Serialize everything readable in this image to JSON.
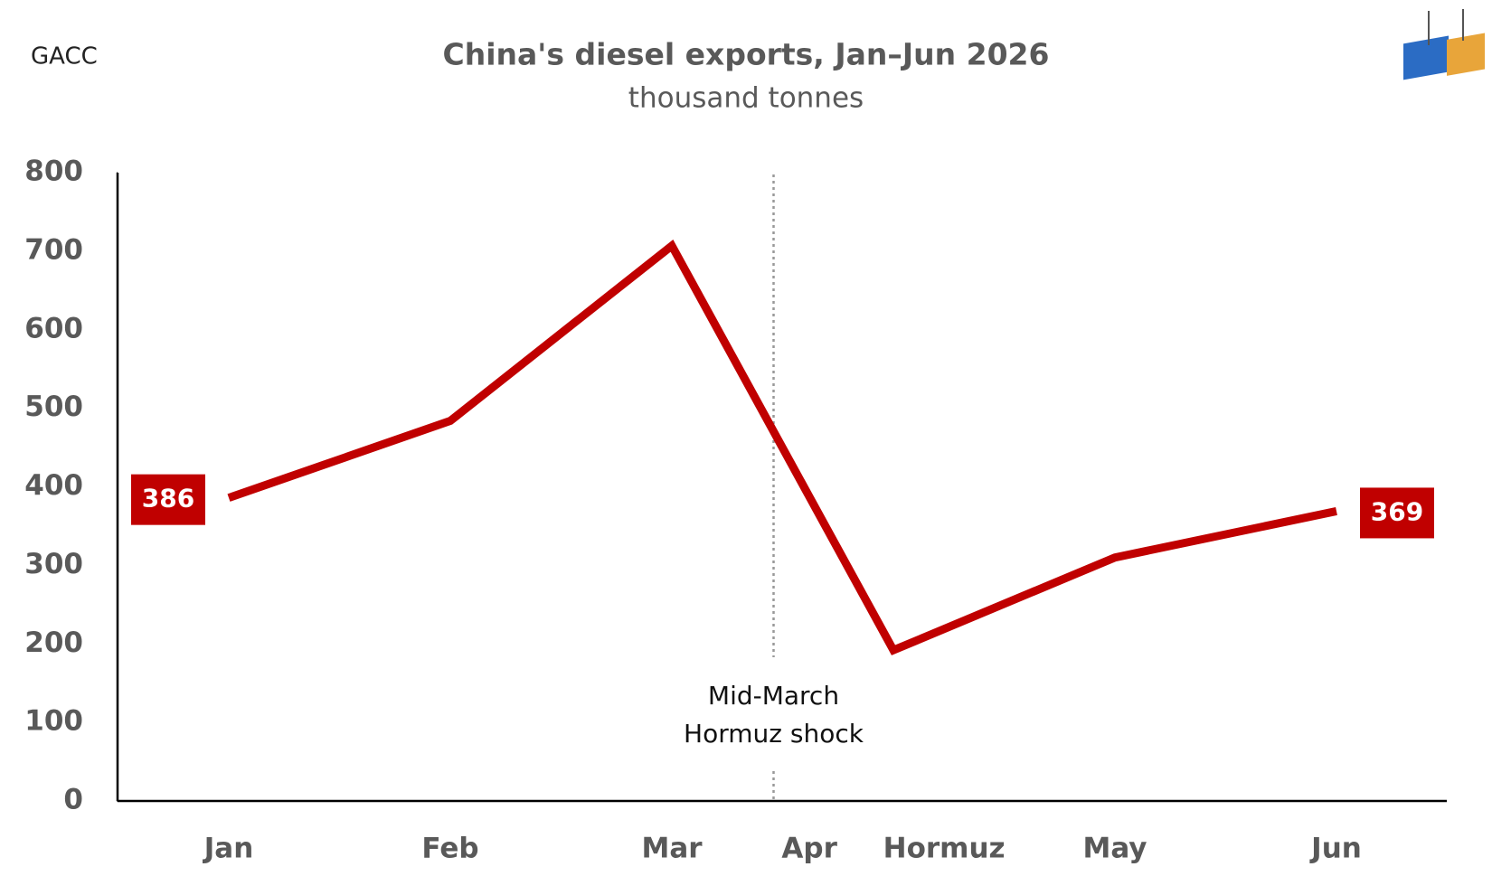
{
  "chart_data": {
    "type": "line",
    "title": "China's diesel exports, Jan–Jun 2026",
    "subtitle": "thousand tonnes",
    "source": "GACC",
    "categories": [
      "Jan",
      "Feb",
      "Mar",
      "Apr Hormuz",
      "May",
      "Jun"
    ],
    "series": [
      {
        "name": "Diesel exports",
        "color": "#c00000",
        "values": [
          386,
          484,
          707,
          192,
          310,
          369
        ]
      }
    ],
    "ylim": [
      0,
      800
    ],
    "yticks": [
      0,
      100,
      200,
      300,
      400,
      500,
      600,
      700,
      800
    ],
    "annotation": [
      "Mid-March",
      "Hormuz shock"
    ]
  }
}
